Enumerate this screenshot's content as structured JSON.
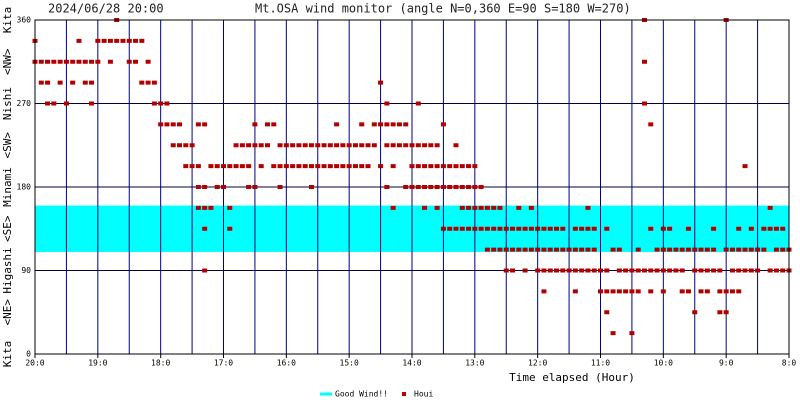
{
  "chart_data": {
    "type": "scatter",
    "timestamp": "2024/06/28 20:00",
    "title": "Mt.OSA wind monitor (angle N=0,360 E=90 S=180 W=270)",
    "x_label": "Time elapsed (Hour)",
    "xlim": [
      0,
      12
    ],
    "xticks": [
      {
        "value": 0,
        "label": "20:0"
      },
      {
        "value": 1,
        "label": "19:0"
      },
      {
        "value": 2,
        "label": "18:0"
      },
      {
        "value": 3,
        "label": "17:0"
      },
      {
        "value": 4,
        "label": "16:0"
      },
      {
        "value": 5,
        "label": "15:0"
      },
      {
        "value": 6,
        "label": "14:0"
      },
      {
        "value": 7,
        "label": "13:0"
      },
      {
        "value": 8,
        "label": "12:0"
      },
      {
        "value": 9,
        "label": "11:0"
      },
      {
        "value": 10,
        "label": "10:0"
      },
      {
        "value": 11,
        "label": "9:0"
      },
      {
        "value": 12,
        "label": "8:0"
      }
    ],
    "ylim": [
      0,
      360
    ],
    "yticks": [
      0,
      90,
      180,
      270,
      360
    ],
    "direction_labels": [
      {
        "value": 0,
        "label": "Kita"
      },
      {
        "value": 45,
        "label": "<NE>"
      },
      {
        "value": 90,
        "label": "Higashi"
      },
      {
        "value": 135,
        "label": "<SE>"
      },
      {
        "value": 180,
        "label": "Minami"
      },
      {
        "value": 225,
        "label": "<SW>"
      },
      {
        "value": 270,
        "label": "Nishi"
      },
      {
        "value": 315,
        "label": "<NW>"
      },
      {
        "value": 360,
        "label": "Kita"
      }
    ],
    "band": {
      "name": "Good Wind!!",
      "range": [
        110,
        160
      ],
      "color": "#00ffff"
    },
    "grid": true,
    "series": [
      {
        "name": "Houi",
        "color": "#b00000",
        "x": [
          0,
          0,
          0.1,
          0.1,
          0.2,
          0.2,
          0.2,
          0.3,
          0.3,
          0.4,
          0.4,
          0.5,
          0.5,
          0.6,
          0.6,
          0.7,
          0.7,
          0.8,
          0.8,
          0.9,
          0.9,
          0.9,
          1,
          1,
          1.1,
          1.2,
          1.2,
          1.3,
          1.3,
          1.4,
          1.5,
          1.5,
          1.6,
          1.6,
          1.7,
          1.7,
          1.8,
          1.8,
          1.9,
          1.9,
          2,
          2,
          2.1,
          2.1,
          2.2,
          2.2,
          2.3,
          2.3,
          2.4,
          2.4,
          2.5,
          2.5,
          2.6,
          2.6,
          2.6,
          2.6,
          2.7,
          2.7,
          2.7,
          2.7,
          2.7,
          2.8,
          2.8,
          2.9,
          2.9,
          3,
          3,
          3.1,
          3.1,
          3.1,
          3.2,
          3.2,
          3.3,
          3.3,
          3.4,
          3.4,
          3.4,
          3.5,
          3.5,
          3.5,
          3.6,
          3.6,
          3.7,
          3.7,
          3.8,
          3.8,
          3.9,
          3.9,
          3.9,
          4,
          4,
          4.1,
          4.1,
          4.2,
          4.2,
          4.3,
          4.3,
          4.4,
          4.4,
          4.4,
          4.5,
          4.5,
          4.6,
          4.6,
          4.7,
          4.7,
          4.8,
          4.8,
          4.8,
          4.9,
          4.9,
          5,
          5,
          5.1,
          5.1,
          5.2,
          5.2,
          5.2,
          5.3,
          5.3,
          5.4,
          5.4,
          5.5,
          5.5,
          5.5,
          5.6,
          5.6,
          5.6,
          5.6,
          5.7,
          5.7,
          5.7,
          5.7,
          5.8,
          5.8,
          5.9,
          5.9,
          5.9,
          6,
          6,
          6,
          6.1,
          6.1,
          6.1,
          6.1,
          6.2,
          6.2,
          6.2,
          6.2,
          6.3,
          6.3,
          6.3,
          6.4,
          6.4,
          6.4,
          6.4,
          6.5,
          6.5,
          6.5,
          6.5,
          6.6,
          6.6,
          6.6,
          6.7,
          6.7,
          6.7,
          6.7,
          6.8,
          6.8,
          6.8,
          6.8,
          6.9,
          6.9,
          6.9,
          6.9,
          7,
          7,
          7,
          7,
          7.1,
          7.1,
          7.1,
          7.2,
          7.2,
          7.2,
          7.3,
          7.3,
          7.3,
          7.4,
          7.4,
          7.4,
          7.5,
          7.5,
          7.5,
          7.6,
          7.6,
          7.6,
          7.7,
          7.7,
          7.7,
          7.8,
          7.8,
          7.8,
          7.9,
          7.9,
          7.9,
          8,
          8,
          8,
          8.1,
          8.1,
          8.1,
          8.1,
          8.2,
          8.2,
          8.2,
          8.3,
          8.3,
          8.3,
          8.4,
          8.4,
          8.4,
          8.5,
          8.5,
          8.6,
          8.6,
          8.6,
          8.6,
          8.7,
          8.7,
          8.7,
          8.8,
          8.8,
          8.8,
          8.8,
          8.9,
          8.9,
          8.9,
          9,
          9,
          9.1,
          9.1,
          9.1,
          9.1,
          9.2,
          9.2,
          9.2,
          9.3,
          9.3,
          9.3,
          9.4,
          9.4,
          9.5,
          9.5,
          9.5,
          9.6,
          9.6,
          9.6,
          9.7,
          9.7,
          9.7,
          9.7,
          9.8,
          9.8,
          9.8,
          9.8,
          9.9,
          9.9,
          10,
          10,
          10,
          10,
          10.1,
          10.1,
          10.1,
          10.2,
          10.2,
          10.3,
          10.3,
          10.3,
          10.4,
          10.4,
          10.4,
          10.5,
          10.5,
          10.5,
          10.6,
          10.6,
          10.6,
          10.7,
          10.7,
          10.7,
          10.8,
          10.8,
          10.8,
          10.9,
          10.9,
          10.9,
          11,
          11,
          11,
          11,
          11.1,
          11.1,
          11.1,
          11.2,
          11.2,
          11.2,
          11.2,
          11.3,
          11.3,
          11.3,
          11.4,
          11.4,
          11.4,
          11.5,
          11.5,
          11.6,
          11.6,
          11.7,
          11.7,
          11.7,
          11.8,
          11.8,
          11.8,
          11.9,
          11.9,
          11.9,
          12,
          12
        ],
        "values": [
          337.5,
          315,
          315,
          292.5,
          315,
          292.5,
          270,
          315,
          270,
          315,
          292.5,
          315,
          270,
          315,
          292.5,
          315,
          337.5,
          315,
          292.5,
          315,
          292.5,
          270,
          337.5,
          315,
          337.5,
          337.5,
          315,
          360,
          337.5,
          337.5,
          337.5,
          315,
          337.5,
          315,
          337.5,
          292.5,
          315,
          292.5,
          292.5,
          270,
          270,
          247.5,
          270,
          247.5,
          247.5,
          225,
          247.5,
          225,
          225,
          202.5,
          225,
          202.5,
          247.5,
          202.5,
          180,
          157.5,
          247.5,
          180,
          157.5,
          135,
          90,
          202.5,
          157.5,
          202.5,
          180,
          202.5,
          180,
          202.5,
          157.5,
          135,
          225,
          202.5,
          225,
          202.5,
          225,
          202.5,
          180,
          247.5,
          225,
          180,
          225,
          202.5,
          247.5,
          225,
          247.5,
          202.5,
          225,
          202.5,
          180,
          225,
          202.5,
          225,
          202.5,
          225,
          202.5,
          225,
          202.5,
          225,
          202.5,
          180,
          225,
          202.5,
          225,
          202.5,
          225,
          202.5,
          247.5,
          225,
          202.5,
          225,
          202.5,
          225,
          202.5,
          225,
          202.5,
          247.5,
          225,
          202.5,
          225,
          202.5,
          247.5,
          225,
          292.5,
          247.5,
          202.5,
          270,
          247.5,
          225,
          180,
          247.5,
          225,
          202.5,
          157.5,
          247.5,
          225,
          247.5,
          225,
          180,
          225,
          202.5,
          180,
          270,
          225,
          202.5,
          180,
          225,
          202.5,
          180,
          157.5,
          225,
          202.5,
          180,
          225,
          202.5,
          180,
          157.5,
          247.5,
          202.5,
          180,
          135,
          202.5,
          180,
          135,
          225,
          202.5,
          180,
          135,
          202.5,
          180,
          157.5,
          135,
          202.5,
          180,
          157.5,
          135,
          202.5,
          180,
          157.5,
          135,
          180,
          157.5,
          135,
          157.5,
          135,
          112.5,
          157.5,
          135,
          112.5,
          157.5,
          135,
          112.5,
          135,
          112.5,
          90,
          135,
          112.5,
          90,
          157.5,
          135,
          112.5,
          135,
          112.5,
          90,
          157.5,
          135,
          112.5,
          135,
          112.5,
          90,
          135,
          112.5,
          90,
          67.5,
          135,
          112.5,
          90,
          135,
          112.5,
          90,
          135,
          112.5,
          90,
          112.5,
          90,
          135,
          112.5,
          90,
          67.5,
          135,
          112.5,
          90,
          157.5,
          135,
          112.5,
          90,
          135,
          112.5,
          90,
          90,
          67.5,
          135,
          90,
          67.5,
          45,
          112.5,
          67.5,
          22.5,
          112.5,
          90,
          67.5,
          90,
          67.5,
          90,
          67.5,
          22.5,
          112.5,
          90,
          67.5,
          360,
          315,
          270,
          90,
          247.5,
          135,
          90,
          67.5,
          112.5,
          90,
          135,
          112.5,
          90,
          67.5,
          135,
          112.5,
          90,
          112.5,
          90,
          112.5,
          90,
          67.5,
          135,
          112.5,
          67.5,
          112.5,
          90,
          45,
          112.5,
          90,
          67.5,
          112.5,
          90,
          67.5,
          135,
          112.5,
          90,
          90,
          67.5,
          45,
          360,
          112.5,
          67.5,
          45,
          112.5,
          90,
          67.5,
          135,
          112.5,
          90,
          67.5,
          202.5,
          112.5,
          90,
          135,
          112.5,
          90,
          112.5,
          90,
          135,
          112.5,
          157.5,
          135,
          90,
          135,
          112.5,
          90,
          135,
          112.5,
          90,
          112.5,
          90
        ]
      }
    ]
  }
}
